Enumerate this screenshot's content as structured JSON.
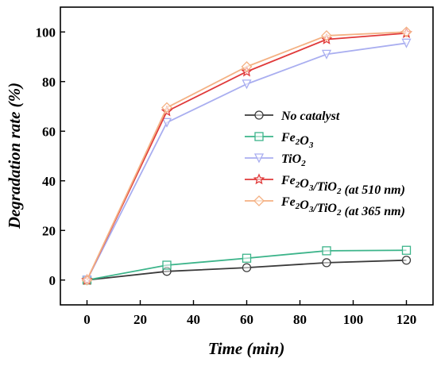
{
  "chart_data": {
    "type": "line",
    "xlabel": "Time (min)",
    "ylabel": "Degradation rate (%)",
    "xlim": [
      -10,
      130
    ],
    "ylim": [
      -10,
      110
    ],
    "xticks": [
      0,
      20,
      40,
      60,
      80,
      100,
      120
    ],
    "yticks": [
      0,
      20,
      40,
      60,
      80,
      100
    ],
    "grid": false,
    "legend_position": "right",
    "x": [
      0,
      30,
      60,
      90,
      120
    ],
    "series": [
      {
        "name": "No catalyst",
        "label_parts": [
          [
            "No catalyst",
            ""
          ]
        ],
        "color": "#3a3a3a",
        "marker": "circle",
        "values": [
          0,
          3.5,
          5,
          7,
          8
        ]
      },
      {
        "name": "Fe2O3",
        "label_parts": [
          [
            "Fe",
            ""
          ],
          [
            "2",
            "sub"
          ],
          [
            "O",
            ""
          ],
          [
            "3",
            "sub"
          ]
        ],
        "color": "#3cb48a",
        "marker": "square",
        "values": [
          0,
          6,
          8.8,
          11.8,
          12
        ]
      },
      {
        "name": "TiO2",
        "label_parts": [
          [
            "TiO",
            ""
          ],
          [
            "2",
            "sub"
          ]
        ],
        "color": "#a9aef0",
        "marker": "triangle-down",
        "values": [
          0,
          63.5,
          79,
          91,
          95.5
        ]
      },
      {
        "name": "Fe2O3/TiO2 (at 510 nm)",
        "label_parts": [
          [
            "Fe",
            ""
          ],
          [
            "2",
            "sub"
          ],
          [
            "O",
            ""
          ],
          [
            "3",
            "sub"
          ],
          [
            "/TiO",
            ""
          ],
          [
            "2",
            "sub"
          ],
          [
            " (at 510 nm)",
            ""
          ]
        ],
        "color": "#e03a3a",
        "marker": "star",
        "values": [
          0,
          68,
          84,
          97,
          99.5
        ]
      },
      {
        "name": "Fe2O3/TiO2 (at 365 nm)",
        "label_parts": [
          [
            "Fe",
            ""
          ],
          [
            "2",
            "sub"
          ],
          [
            "O",
            ""
          ],
          [
            "3",
            "sub"
          ],
          [
            "/TiO",
            ""
          ],
          [
            "2",
            "sub"
          ],
          [
            " (at 365 nm)",
            ""
          ]
        ],
        "color": "#f4b183",
        "marker": "diamond",
        "values": [
          0,
          69.5,
          86,
          98.5,
          100
        ]
      }
    ]
  }
}
